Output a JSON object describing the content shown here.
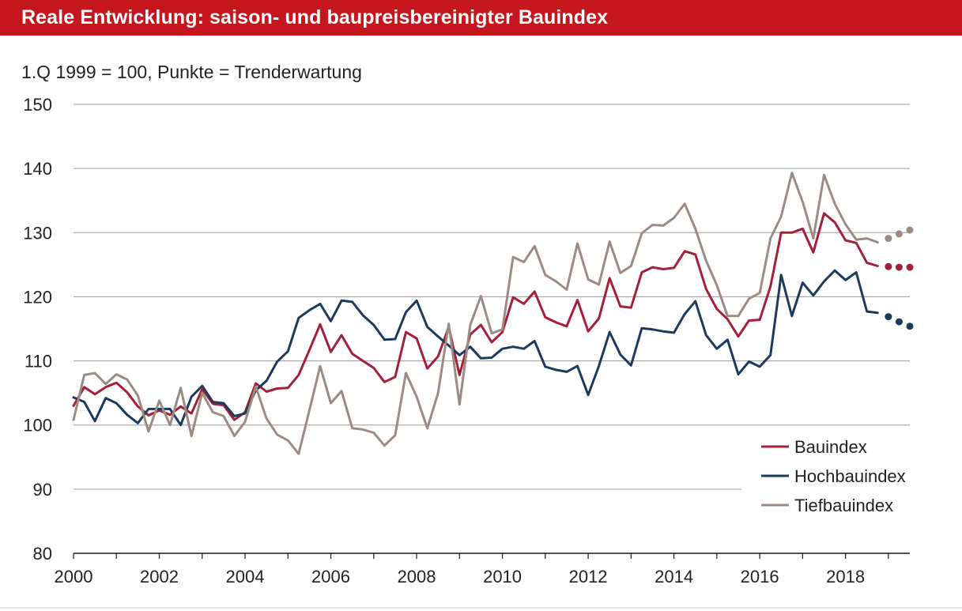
{
  "header": {
    "title": "Reale Entwicklung: saison- und baupreisbereinigter Bauindex",
    "subtitle": "1.Q 1999 = 100, Punkte = Trenderwartung"
  },
  "colors": {
    "title_background": "#c4161c",
    "bauindex": "#a4203a",
    "hochbauindex": "#1c3a5e",
    "tiefbauindex": "#9c8b82",
    "grid": "#9a9a9a"
  },
  "chart_data": {
    "type": "line",
    "title": "Reale Entwicklung: saison- und baupreisbereinigter Bauindex",
    "subtitle": "1.Q 1999 = 100, Punkte = Trenderwartung",
    "xlim": [
      2000,
      2019.5
    ],
    "ylim": [
      80,
      150
    ],
    "yticks": [
      80,
      90,
      100,
      110,
      120,
      130,
      140,
      150
    ],
    "xticks": [
      2000,
      2002,
      2004,
      2006,
      2008,
      2010,
      2012,
      2014,
      2016,
      2018
    ],
    "xtick_labels": [
      "2000",
      "2002",
      "2004",
      "2006",
      "2008",
      "2010",
      "2012",
      "2014",
      "2016",
      "2018"
    ],
    "grid": "horizontal",
    "legend_position": "bottom-right",
    "x_start": 2000,
    "x_step": 0.25,
    "series": [
      {
        "name": "Bauindex",
        "color": "#a4203a",
        "values": [
          103.0,
          105.9,
          104.8,
          105.9,
          106.6,
          105.1,
          102.9,
          101.5,
          102.3,
          101.6,
          102.9,
          101.8,
          105.6,
          103.3,
          103.1,
          100.8,
          102.0,
          106.5,
          105.2,
          105.7,
          105.8,
          107.8,
          111.7,
          115.7,
          111.4,
          114.0,
          111.1,
          110.0,
          108.9,
          106.7,
          107.5,
          114.5,
          113.5,
          108.8,
          110.7,
          115.3,
          107.8,
          114.1,
          115.6,
          112.9,
          114.5,
          119.9,
          118.9,
          120.8,
          116.8,
          116.0,
          115.4,
          119.5,
          114.6,
          116.6,
          122.9,
          118.5,
          118.3,
          123.8,
          124.6,
          124.3,
          124.5,
          127.1,
          126.6,
          121.2,
          118.1,
          116.5,
          113.8,
          116.3,
          116.4,
          121.6,
          130.0,
          130.0,
          130.6,
          126.9,
          133.0,
          131.6,
          128.8,
          128.4,
          125.3,
          124.8
        ],
        "trend": [
          124.7,
          124.6,
          124.6
        ]
      },
      {
        "name": "Hochbauindex",
        "color": "#1c3a5e",
        "values": [
          104.3,
          103.6,
          100.6,
          104.2,
          103.4,
          101.6,
          100.3,
          102.5,
          102.5,
          102.5,
          100.0,
          104.4,
          106.1,
          103.6,
          103.4,
          101.4,
          101.8,
          105.4,
          106.9,
          109.9,
          111.5,
          116.7,
          117.9,
          118.9,
          116.2,
          119.4,
          119.2,
          117.1,
          115.6,
          113.3,
          113.4,
          117.6,
          119.4,
          115.3,
          113.8,
          112.4,
          110.9,
          112.2,
          110.4,
          110.5,
          111.9,
          112.2,
          111.9,
          113.1,
          109.1,
          108.6,
          108.3,
          109.2,
          104.7,
          109.2,
          114.5,
          111.0,
          109.3,
          115.1,
          114.9,
          114.6,
          114.4,
          117.3,
          119.3,
          114.0,
          111.9,
          113.3,
          107.9,
          109.9,
          109.1,
          110.9,
          123.4,
          117.0,
          122.2,
          120.2,
          122.4,
          124.1,
          122.6,
          123.8,
          117.7,
          117.5
        ],
        "trend": [
          116.9,
          116.1,
          115.4
        ]
      },
      {
        "name": "Tiefbauindex",
        "color": "#9c8b82",
        "values": [
          100.8,
          107.8,
          108.1,
          106.4,
          107.9,
          107.1,
          104.6,
          99.0,
          103.8,
          100.0,
          105.8,
          98.3,
          105.0,
          102.0,
          101.4,
          98.3,
          100.5,
          106.0,
          101.0,
          98.5,
          97.6,
          95.5,
          102.3,
          109.2,
          103.4,
          105.3,
          99.5,
          99.3,
          98.8,
          96.8,
          98.4,
          108.1,
          104.4,
          99.5,
          105.0,
          115.8,
          103.2,
          115.6,
          120.1,
          114.3,
          114.9,
          126.2,
          125.4,
          127.9,
          123.4,
          122.4,
          121.1,
          128.3,
          122.7,
          121.9,
          128.6,
          123.7,
          124.8,
          129.9,
          131.2,
          131.1,
          132.3,
          134.5,
          130.6,
          125.6,
          121.8,
          117.0,
          117.0,
          119.7,
          120.6,
          129.1,
          132.5,
          139.3,
          134.8,
          129.1,
          139.0,
          134.5,
          131.3,
          128.9,
          129.1,
          128.5
        ],
        "trend": [
          129.1,
          129.8,
          130.4
        ]
      }
    ]
  }
}
